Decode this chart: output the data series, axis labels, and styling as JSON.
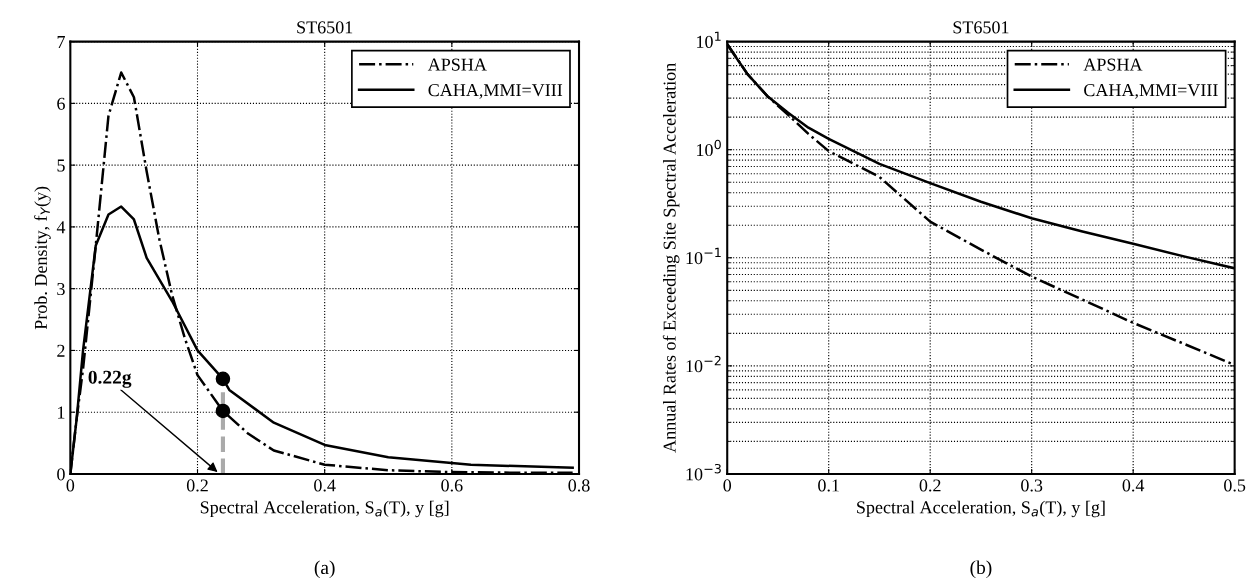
{
  "chart_data": [
    {
      "type": "line",
      "title": "ST6501",
      "xlabel": "Spectral Acceleration, S$_{a}$(T), y [g]",
      "ylabel": "Prob. Density, f$_{Y}$(y)",
      "xlim": [
        0,
        0.8
      ],
      "xticks": [
        0,
        0.2,
        0.4,
        0.6,
        0.8
      ],
      "ylim": [
        0,
        7
      ],
      "yticks": [
        0,
        1,
        2,
        3,
        4,
        5,
        6,
        7
      ],
      "grid": true,
      "legend": "top right",
      "series": [
        {
          "name": "APSHA",
          "color": "#000000",
          "line_style": "dashdot",
          "x": [
            0,
            0.01,
            0.02,
            0.04,
            0.06,
            0.08,
            0.1,
            0.12,
            0.14,
            0.16,
            0.18,
            0.2,
            0.24,
            0.28,
            0.32,
            0.4,
            0.5,
            0.6,
            0.7,
            0.79
          ],
          "values": [
            0,
            0.9,
            1.7,
            3.7,
            5.8,
            6.5,
            6.1,
            4.9,
            3.8,
            2.9,
            2.2,
            1.6,
            1.02,
            0.65,
            0.38,
            0.15,
            0.06,
            0.03,
            0.02,
            0.02
          ]
        },
        {
          "name": "CAHA,MMI=VIII",
          "color": "#000000",
          "line_style": "solid",
          "x": [
            0,
            0.01,
            0.02,
            0.04,
            0.06,
            0.08,
            0.1,
            0.12,
            0.16,
            0.2,
            0.24,
            0.25,
            0.32,
            0.4,
            0.5,
            0.63,
            0.79
          ],
          "values": [
            0,
            0.9,
            2.0,
            3.7,
            4.2,
            4.33,
            4.12,
            3.5,
            2.8,
            2.0,
            1.54,
            1.36,
            0.83,
            0.47,
            0.27,
            0.15,
            0.1
          ]
        },
        {
          "type": "line",
          "color": "#aaaaaa",
          "line_style": "dashed",
          "x": [
            0.24,
            0.24
          ],
          "values": [
            0,
            1.54
          ]
        },
        {
          "type": "scatter",
          "color": "#000000",
          "marker": "circle",
          "x": [
            0.24,
            0.24
          ],
          "values": [
            1.54,
            1.02
          ]
        }
      ],
      "annotations": [
        {
          "text": "0.22g",
          "x": 0.235,
          "y": 0
        },
        "(a)"
      ]
    },
    {
      "type": "line",
      "title": "ST6501",
      "xlabel": "Spectral Acceleration, S$_{a}$(T), y [g]",
      "ylabel": "Annual Rates of Exceeding Site Spectral Acceleration",
      "log": "y",
      "xlim": [
        0,
        0.5
      ],
      "xticks": [
        0,
        0.1,
        0.2,
        0.3,
        0.4,
        0.5
      ],
      "ylim": [
        0.001,
        10
      ],
      "yticks": [
        {
          "value": 0.001,
          "label": "10$^{−3}$"
        },
        {
          "value": 0.01,
          "label": "10$^{−2}$"
        },
        {
          "value": 0.1,
          "label": "10$^{−1}$"
        },
        {
          "value": 1,
          "label": "10$^{0}$"
        },
        {
          "value": 10,
          "label": "10$^{1}$"
        }
      ],
      "grid": true,
      "legend": "top right",
      "series": [
        {
          "name": "APSHA",
          "color": "#000000",
          "line_style": "dashdot",
          "x": [
            0,
            0.02,
            0.04,
            0.06,
            0.08,
            0.1,
            0.15,
            0.2,
            0.25,
            0.3,
            0.35,
            0.4,
            0.45,
            0.5
          ],
          "values": [
            9.5,
            5.0,
            3.1,
            2.1,
            1.4,
            0.97,
            0.56,
            0.216,
            0.119,
            0.067,
            0.041,
            0.025,
            0.016,
            0.0102
          ]
        },
        {
          "name": "CAHA,MMI=VIII",
          "color": "#000000",
          "line_style": "solid",
          "x": [
            0,
            0.02,
            0.04,
            0.06,
            0.08,
            0.1,
            0.15,
            0.2,
            0.25,
            0.3,
            0.35,
            0.4,
            0.45,
            0.5
          ],
          "values": [
            9.4,
            5.0,
            3.1,
            2.2,
            1.6,
            1.26,
            0.74,
            0.49,
            0.33,
            0.232,
            0.175,
            0.135,
            0.103,
            0.08
          ]
        }
      ],
      "annotations": [
        "(b)"
      ]
    }
  ]
}
